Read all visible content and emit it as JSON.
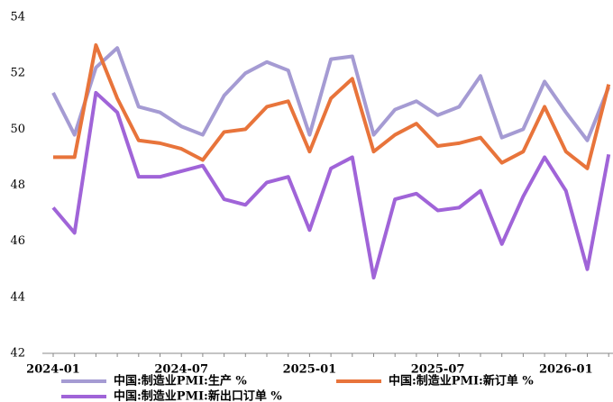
{
  "chart_data": {
    "type": "line",
    "categories": [
      "2024-01",
      null,
      null,
      null,
      null,
      null,
      "2024-07",
      null,
      null,
      null,
      null,
      null,
      "2025-01",
      null,
      null,
      null,
      null,
      null,
      "2025-07",
      null,
      null,
      null,
      null,
      null,
      "2026-01",
      null,
      null
    ],
    "series": [
      {
        "name": "中国:制造业PMI:生产 %",
        "color": "#a59bd3",
        "values": [
          51.3,
          49.8,
          52.2,
          52.9,
          50.8,
          50.6,
          50.1,
          49.8,
          51.2,
          52.0,
          52.4,
          52.1,
          49.8,
          52.5,
          52.6,
          49.8,
          50.7,
          51.0,
          50.5,
          50.8,
          51.9,
          49.7,
          50.0,
          51.7,
          50.6,
          49.6,
          51.5
        ]
      },
      {
        "name": "中国:制造业PMI:新订单 %",
        "color": "#e8743b",
        "values": [
          49.0,
          49.0,
          53.0,
          51.1,
          49.6,
          49.5,
          49.3,
          48.9,
          49.9,
          50.0,
          50.8,
          51.0,
          49.2,
          51.1,
          51.8,
          49.2,
          49.8,
          50.2,
          49.4,
          49.5,
          49.7,
          48.8,
          49.2,
          50.8,
          49.2,
          48.6,
          51.6
        ]
      },
      {
        "name": "中国:制造业PMI:新出口订单 %",
        "color": "#a064d8",
        "values": [
          47.2,
          46.3,
          51.3,
          50.6,
          48.3,
          48.3,
          48.5,
          48.7,
          47.5,
          47.3,
          48.1,
          48.3,
          46.4,
          48.6,
          49.0,
          44.7,
          47.5,
          47.7,
          47.1,
          47.2,
          47.8,
          45.9,
          47.6,
          49.0,
          47.8,
          45.0,
          49.1
        ]
      }
    ],
    "ylim": [
      42,
      54
    ],
    "yticks": [
      42,
      44,
      46,
      48,
      50,
      52,
      54
    ],
    "grid": false,
    "legend": "bottom"
  }
}
